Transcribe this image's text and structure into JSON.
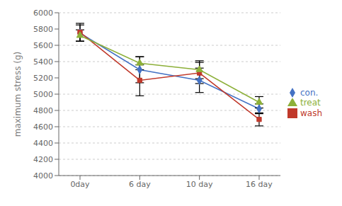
{
  "chart_data": {
    "type": "line",
    "ylabel": "maximum stress (g)",
    "categories": [
      "0day",
      "6 day",
      "10 day",
      "16 day"
    ],
    "series": [
      {
        "name": "con.",
        "color": "#4472C4",
        "marker": "diamond",
        "values": [
          5750,
          5300,
          5170,
          4820
        ],
        "errors": [
          100,
          160,
          150,
          60
        ]
      },
      {
        "name": "wash",
        "color": "#C0392B",
        "marker": "square",
        "values": [
          5760,
          5170,
          5260,
          4690
        ],
        "errors": [
          110,
          190,
          130,
          80
        ]
      },
      {
        "name": "treat",
        "color": "#8DB03A",
        "marker": "triangle",
        "values": [
          5720,
          5380,
          5300,
          4900
        ],
        "errors": [
          70,
          80,
          110,
          70
        ]
      }
    ],
    "ylim": [
      4000,
      6000
    ],
    "yticks": [
      4000,
      4200,
      4400,
      4600,
      4800,
      5000,
      5200,
      5400,
      5600,
      5800,
      6000
    ],
    "grid": true,
    "legend": "right"
  }
}
